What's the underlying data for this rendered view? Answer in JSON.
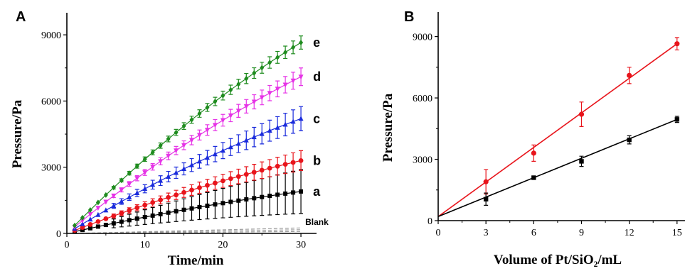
{
  "chart_data": [
    {
      "type": "scatter",
      "panel_label": "A",
      "xlabel": "Time/min",
      "ylabel": "Pressure/Pa",
      "xlim": [
        0,
        32
      ],
      "ylim": [
        0,
        10000
      ],
      "xticks": [
        0,
        10,
        20,
        30
      ],
      "yticks": [
        0,
        3000,
        6000,
        9000
      ],
      "grid": false,
      "series": [
        {
          "name": "Blank",
          "color": "#9e9e9e",
          "marker": "dashed-line",
          "x_end": 30,
          "y_end": 250
        },
        {
          "name": "a",
          "color": "#000000",
          "marker": "square",
          "x_end": 30,
          "y_end": 1900,
          "error_end": 1000
        },
        {
          "name": "b",
          "color": "#e8141b",
          "marker": "circle",
          "x_end": 30,
          "y_end": 3300,
          "error_end": 450
        },
        {
          "name": "c",
          "color": "#1a2bdc",
          "marker": "triangle-up",
          "x_end": 30,
          "y_end": 5200,
          "error_end": 550
        },
        {
          "name": "d",
          "color": "#e633e6",
          "marker": "triangle-down",
          "x_end": 30,
          "y_end": 7100,
          "error_end": 400
        },
        {
          "name": "e",
          "color": "#1f8c1f",
          "marker": "diamond",
          "x_end": 30,
          "y_end": 8650,
          "error_end": 300
        }
      ]
    },
    {
      "type": "line",
      "panel_label": "B",
      "xlabel": "Volume of Pt/SiO₂/mL",
      "ylabel": "Pressure/Pa",
      "xlim": [
        0,
        15.5
      ],
      "ylim": [
        0,
        10200
      ],
      "xticks": [
        0,
        3,
        6,
        9,
        12,
        15
      ],
      "yticks": [
        0,
        3000,
        6000,
        9000
      ],
      "grid": false,
      "series": [
        {
          "name": "b",
          "color": "#e8141b",
          "marker": "circle",
          "x": [
            3,
            6,
            9,
            12,
            15
          ],
          "y": [
            1900,
            3300,
            5200,
            7100,
            8650
          ],
          "error": [
            600,
            400,
            600,
            400,
            300
          ],
          "fit": [
            [
              0,
              200
            ],
            [
              15,
              8650
            ]
          ]
        },
        {
          "name": "a",
          "color": "#000000",
          "marker": "square",
          "x": [
            3,
            6,
            9,
            12,
            15
          ],
          "y": [
            1050,
            2100,
            2900,
            3950,
            4950
          ],
          "error": [
            300,
            80,
            250,
            200,
            150
          ],
          "fit": [
            [
              0,
              200
            ],
            [
              15,
              4950
            ]
          ]
        }
      ]
    }
  ]
}
